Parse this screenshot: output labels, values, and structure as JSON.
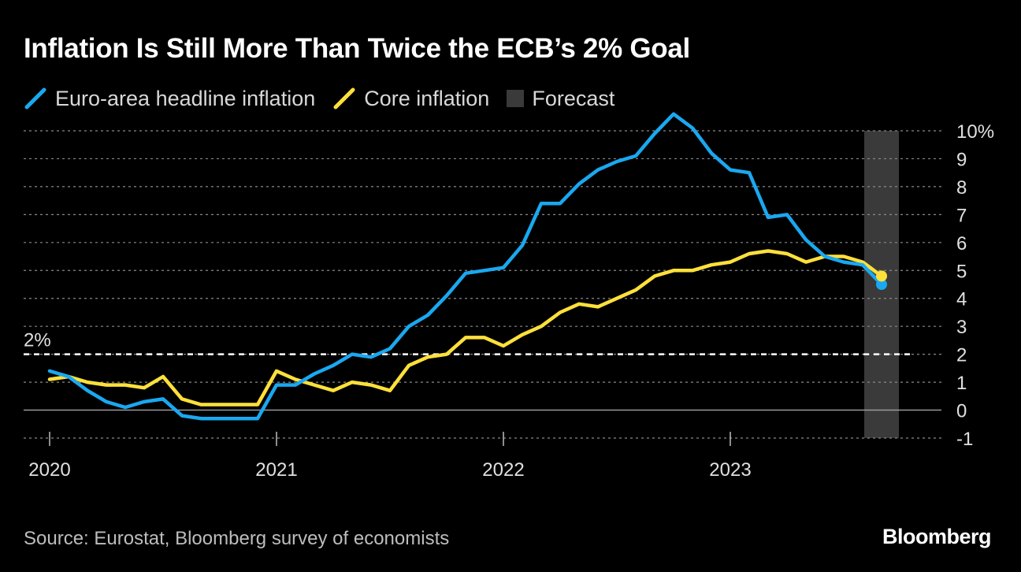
{
  "title": "Inflation Is Still More Than Twice the ECB’s 2% Goal",
  "legend": {
    "headline": "Euro-area headline inflation",
    "core": "Core inflation",
    "forecast": "Forecast"
  },
  "source": "Source: Eurostat, Bloomberg survey of economists",
  "brand": "Bloomberg",
  "colors": {
    "headline": "#1aa8f0",
    "core": "#ffe03a",
    "forecast": "#3a3a3a",
    "grid": "#8a8a8a",
    "background": "#000000"
  },
  "chart_data": {
    "type": "line",
    "x_start": "2020-01",
    "x_end": "2023-09",
    "x_ticks": [
      "2020",
      "2021",
      "2022",
      "2023"
    ],
    "y_ticks": [
      "10%",
      "9",
      "8",
      "7",
      "6",
      "5",
      "4",
      "3",
      "2",
      "1",
      "0",
      "-1"
    ],
    "ylim": [
      -1,
      10
    ],
    "grid": "dotted horizontal",
    "legend_position": "top-left",
    "reference_line": {
      "value": 2,
      "label": "2%"
    },
    "forecast_period": [
      "2023-09",
      "2023-09"
    ],
    "x": [
      "2020-01",
      "2020-02",
      "2020-03",
      "2020-04",
      "2020-05",
      "2020-06",
      "2020-07",
      "2020-08",
      "2020-09",
      "2020-10",
      "2020-11",
      "2020-12",
      "2021-01",
      "2021-02",
      "2021-03",
      "2021-04",
      "2021-05",
      "2021-06",
      "2021-07",
      "2021-08",
      "2021-09",
      "2021-10",
      "2021-11",
      "2021-12",
      "2022-01",
      "2022-02",
      "2022-03",
      "2022-04",
      "2022-05",
      "2022-06",
      "2022-07",
      "2022-08",
      "2022-09",
      "2022-10",
      "2022-11",
      "2022-12",
      "2023-01",
      "2023-02",
      "2023-03",
      "2023-04",
      "2023-05",
      "2023-06",
      "2023-07",
      "2023-08",
      "2023-09"
    ],
    "series": [
      {
        "name": "Euro-area headline inflation",
        "values": [
          1.4,
          1.2,
          0.7,
          0.3,
          0.1,
          0.3,
          0.4,
          -0.2,
          -0.3,
          -0.3,
          -0.3,
          -0.3,
          0.9,
          0.9,
          1.3,
          1.6,
          2.0,
          1.9,
          2.2,
          3.0,
          3.4,
          4.1,
          4.9,
          5.0,
          5.1,
          5.9,
          7.4,
          7.4,
          8.1,
          8.6,
          8.9,
          9.1,
          9.9,
          10.6,
          10.1,
          9.2,
          8.6,
          8.5,
          6.9,
          7.0,
          6.1,
          5.5,
          5.3,
          5.2,
          4.5
        ]
      },
      {
        "name": "Core inflation",
        "values": [
          1.1,
          1.2,
          1.0,
          0.9,
          0.9,
          0.8,
          1.2,
          0.4,
          0.2,
          0.2,
          0.2,
          0.2,
          1.4,
          1.1,
          0.9,
          0.7,
          1.0,
          0.9,
          0.7,
          1.6,
          1.9,
          2.0,
          2.6,
          2.6,
          2.3,
          2.7,
          3.0,
          3.5,
          3.8,
          3.7,
          4.0,
          4.3,
          4.8,
          5.0,
          5.0,
          5.2,
          5.3,
          5.6,
          5.7,
          5.6,
          5.3,
          5.5,
          5.5,
          5.3,
          4.8
        ]
      }
    ]
  }
}
